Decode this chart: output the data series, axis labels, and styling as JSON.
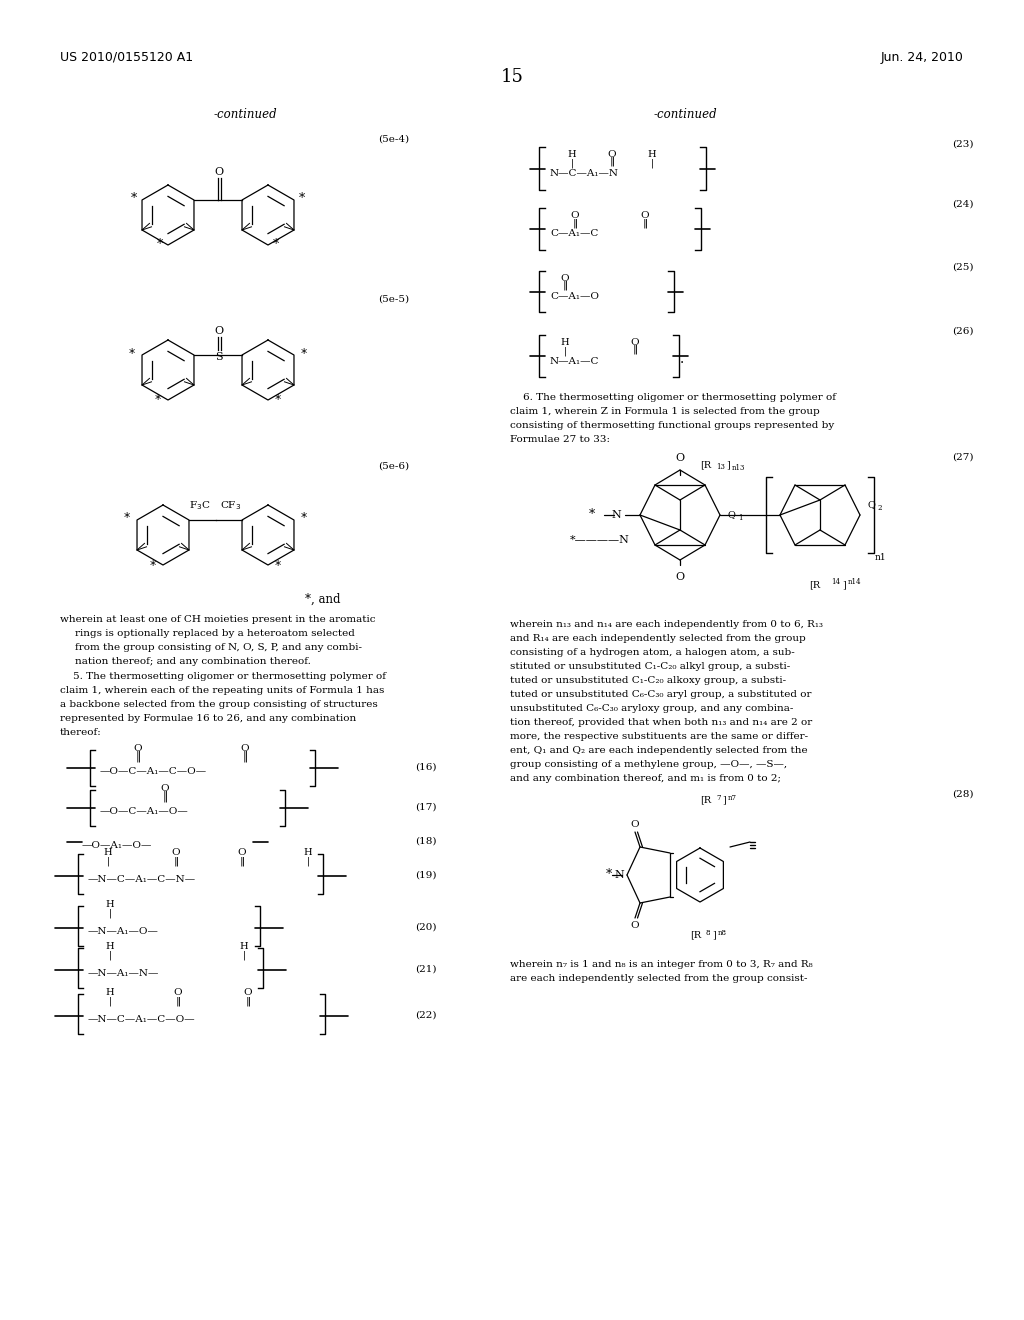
{
  "page_number": "15",
  "patent_number": "US 2010/0155120 A1",
  "patent_date": "Jun. 24, 2010",
  "background_color": "#ffffff",
  "figsize": [
    10.24,
    13.2
  ],
  "dpi": 100
}
